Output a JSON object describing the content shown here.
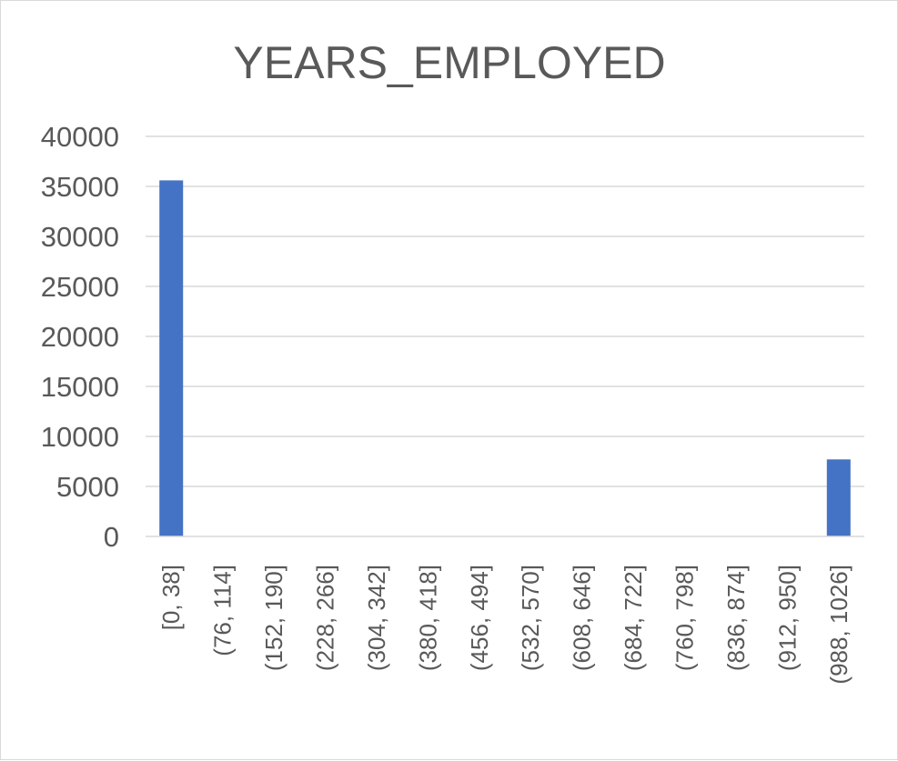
{
  "chart_data": {
    "type": "bar",
    "title": "YEARS_EMPLOYED",
    "xlabel": "",
    "ylabel": "",
    "categories": [
      "[0, 38]",
      "(76, 114]",
      "(152, 190]",
      "(228, 266]",
      "(304, 342]",
      "(380, 418]",
      "(456, 494]",
      "(532, 570]",
      "(608, 646]",
      "(684, 722]",
      "(760, 798]",
      "(836, 874]",
      "(912, 950]",
      "(988, 1026]"
    ],
    "values": [
      35600,
      0,
      0,
      0,
      0,
      0,
      0,
      0,
      0,
      0,
      0,
      0,
      0,
      7700
    ],
    "ylim": [
      0,
      40000
    ],
    "yticks": [
      "0",
      "5000",
      "10000",
      "15000",
      "20000",
      "25000",
      "30000",
      "35000",
      "40000"
    ],
    "grid": true,
    "legend": "none",
    "bar_color": "#4472C4",
    "grid_color": "#d9d9d9"
  }
}
